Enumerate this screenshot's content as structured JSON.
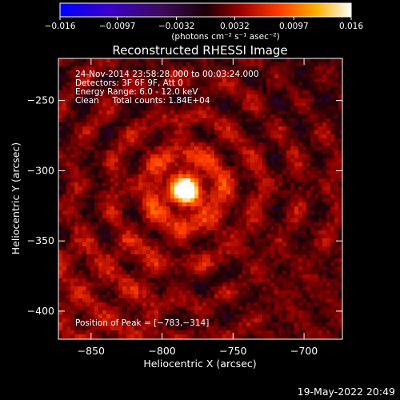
{
  "chart_data": {
    "type": "heatmap",
    "title": "Reconstructed RHESSI Image",
    "xlabel": "Heliocentric X (arcsec)",
    "ylabel": "Heliocentric Y (arcsec)",
    "xlim": [
      -873,
      -673
    ],
    "ylim": [
      -420,
      -220
    ],
    "x_ticks": [
      {
        "value": -850,
        "label": "−850"
      },
      {
        "value": -800,
        "label": "−800"
      },
      {
        "value": -750,
        "label": "−750"
      },
      {
        "value": -700,
        "label": "−700"
      }
    ],
    "y_ticks": [
      {
        "value": -250,
        "label": "−250"
      },
      {
        "value": -300,
        "label": "−300"
      },
      {
        "value": -350,
        "label": "−350"
      },
      {
        "value": -400,
        "label": "−400"
      }
    ],
    "colorbar": {
      "min": -0.016,
      "max": 0.016,
      "ticks": [
        {
          "value": -0.016,
          "label": "−0.016"
        },
        {
          "value": -0.0097,
          "label": "−0.0097"
        },
        {
          "value": -0.0032,
          "label": "−0.0032"
        },
        {
          "value": 0.0032,
          "label": "0.0032"
        },
        {
          "value": 0.0097,
          "label": "0.0097"
        },
        {
          "value": 0.016,
          "label": "0.016"
        }
      ],
      "unit_label": "(photons cm⁻² s⁻¹ asec⁻²)",
      "colors": [
        "#0000ff",
        "#4b0082",
        "#000000",
        "#8b0000",
        "#ff4500",
        "#ffd700",
        "#ffffff"
      ]
    },
    "peak": {
      "x": -783,
      "y": -314,
      "value": 0.016
    },
    "annotations": [
      "24-Nov-2014 23:58:28.000 to 00:03:24.000",
      "Detectors: 3F 6F 9F, Att 0",
      "Energy Range: 6.0 - 12.0 keV",
      "Clean     Total counts: 1.84E+04"
    ],
    "peak_label": "Position of Peak = [−783,−314]",
    "footer_date": "19-May-2022 20:49"
  }
}
